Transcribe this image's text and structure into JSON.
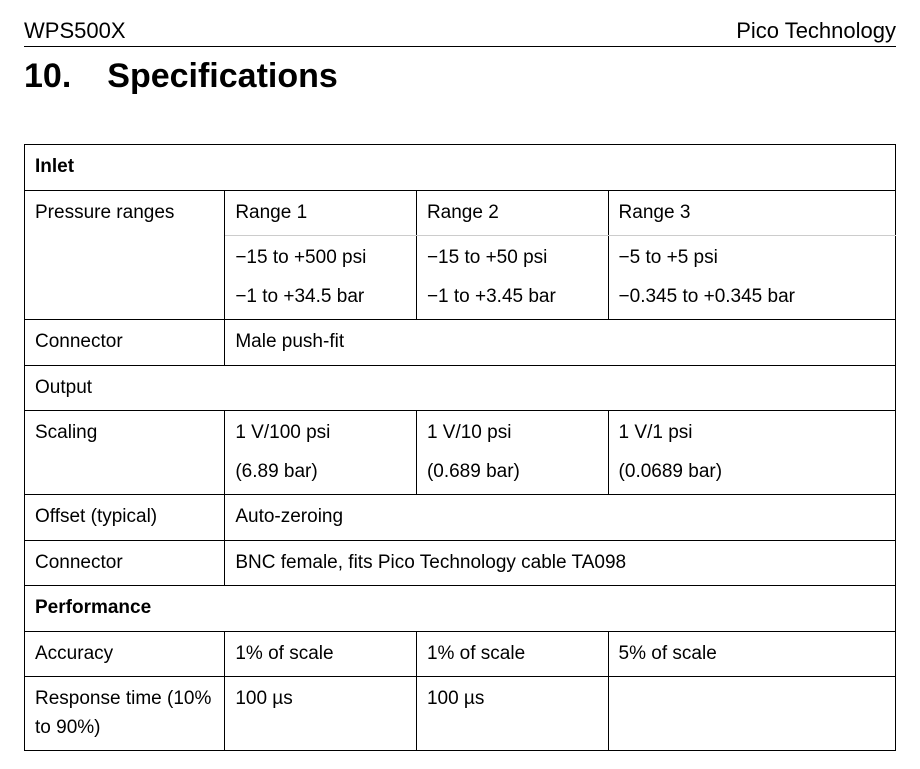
{
  "header": {
    "left": "WPS500X",
    "right": "Pico Technology"
  },
  "section": {
    "number": "10.",
    "title": "Specifications"
  },
  "table": {
    "inlet_header": "Inlet",
    "pressure_ranges_label": "Pressure ranges",
    "range1_label": "Range 1",
    "range2_label": "Range 2",
    "range3_label": "Range 3",
    "range1_psi": "−15 to +500 psi",
    "range1_bar": "−1 to +34.5 bar",
    "range2_psi": "−15 to +50 psi",
    "range2_bar": "−1 to +3.45 bar",
    "range3_psi": "−5 to +5 psi",
    "range3_bar": "−0.345 to +0.345 bar",
    "connector_label": "Connector",
    "connector_inlet_value": "Male push-fit",
    "output_header": "Output",
    "scaling_label": "Scaling",
    "scaling1_a": "1 V/100 psi",
    "scaling1_b": "(6.89 bar)",
    "scaling2_a": "1 V/10 psi",
    "scaling2_b": "(0.689 bar)",
    "scaling3_a": "1 V/1 psi",
    "scaling3_b": "(0.0689 bar)",
    "offset_label": "Offset (typical)",
    "offset_value": "Auto-zeroing",
    "connector_output_value": "BNC female, fits Pico Technology cable TA098",
    "performance_header": "Performance",
    "accuracy_label": "Accuracy",
    "accuracy1": "1% of scale",
    "accuracy2": "1% of scale",
    "accuracy3": "5% of scale",
    "response_label": "Response time (10% to 90%)",
    "response1": "100 µs",
    "response2": "100 µs",
    "response3": ""
  }
}
